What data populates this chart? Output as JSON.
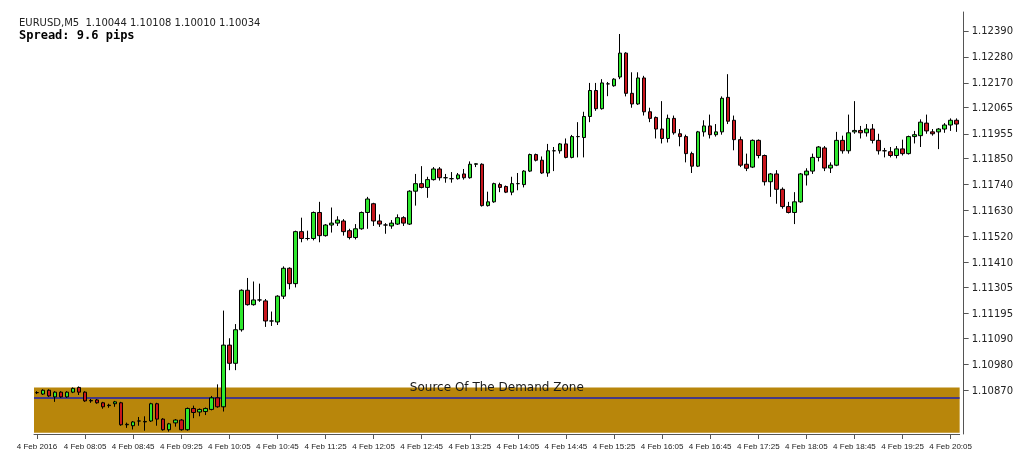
{
  "chart_data": {
    "type": "candlestick",
    "title": "EURUSD,M5  1.10044 1.10108 1.10010 1.10034",
    "subtitle": "Spread: 9.6 pips",
    "categories": [
      "4 Feb 2016",
      null,
      null,
      null,
      null,
      null,
      null,
      null,
      "4 Feb 08:05",
      null,
      null,
      null,
      null,
      null,
      null,
      null,
      "4 Feb 08:45",
      null,
      null,
      null,
      null,
      null,
      null,
      null,
      "4 Feb 09:25",
      null,
      null,
      null,
      null,
      null,
      null,
      null,
      "4 Feb 10:05",
      null,
      null,
      null,
      null,
      null,
      null,
      null,
      "4 Feb 10:45",
      null,
      null,
      null,
      null,
      null,
      null,
      null,
      "4 Feb 11:25",
      null,
      null,
      null,
      null,
      null,
      null,
      null,
      "4 Feb 12:05",
      null,
      null,
      null,
      null,
      null,
      null,
      null,
      "4 Feb 12:45",
      null,
      null,
      null,
      null,
      null,
      null,
      null,
      "4 Feb 13:25",
      null,
      null,
      null,
      null,
      null,
      null,
      null,
      "4 Feb 14:05",
      null,
      null,
      null,
      null,
      null,
      null,
      null,
      "4 Feb 14:45",
      null,
      null,
      null,
      null,
      null,
      null,
      null,
      "4 Feb 15:25",
      null,
      null,
      null,
      null,
      null,
      null,
      null,
      "4 Feb 16:05",
      null,
      null,
      null,
      null,
      null,
      null,
      null,
      "4 Feb 16:45",
      null,
      null,
      null,
      null,
      null,
      null,
      null,
      "4 Feb 17:25",
      null,
      null,
      null,
      null,
      null,
      null,
      null,
      "4 Feb 18:05",
      null,
      null,
      null,
      null,
      null,
      null,
      null,
      "4 Feb 18:45",
      null,
      null,
      null,
      null,
      null,
      null,
      null,
      "4 Feb 19:25",
      null,
      null,
      null,
      null,
      null,
      null,
      null,
      "4 Feb 20:05",
      null
    ],
    "ohlc": [
      [
        1.1086,
        1.10866,
        1.10854,
        1.1086
      ],
      [
        1.10854,
        1.10874,
        1.1085,
        1.1087
      ],
      [
        1.1087,
        1.10874,
        1.10842,
        1.10846
      ],
      [
        1.10842,
        1.10866,
        1.10821,
        1.10862
      ],
      [
        1.10862,
        1.10866,
        1.10838,
        1.10842
      ],
      [
        1.10842,
        1.10866,
        1.10838,
        1.10862
      ],
      [
        1.10862,
        1.10882,
        1.10858,
        1.10878
      ],
      [
        1.10882,
        1.10886,
        1.1085,
        1.10862
      ],
      [
        1.10862,
        1.10866,
        1.10821,
        1.10825
      ],
      [
        1.10825,
        1.10833,
        1.10817,
        1.10827
      ],
      [
        1.10829,
        1.10833,
        1.10813,
        1.10817
      ],
      [
        1.10817,
        1.10821,
        1.10792,
        1.108
      ],
      [
        1.10805,
        1.10813,
        1.10796,
        1.10807
      ],
      [
        1.10813,
        1.10825,
        1.108,
        1.10821
      ],
      [
        1.10817,
        1.10821,
        1.1072,
        1.10724
      ],
      [
        1.10724,
        1.10733,
        1.10711,
        1.10726
      ],
      [
        1.1072,
        1.1074,
        1.10704,
        1.10736
      ],
      [
        1.1074,
        1.10757,
        1.1072,
        1.1074
      ],
      [
        1.10736,
        1.1076,
        1.10699,
        1.10738
      ],
      [
        1.1074,
        1.10817,
        1.10736,
        1.10813
      ],
      [
        1.10813,
        1.10817,
        1.1072,
        1.10748
      ],
      [
        1.10748,
        1.10752,
        1.10699,
        1.10703
      ],
      [
        1.10703,
        1.10732,
        1.10695,
        1.10728
      ],
      [
        1.10732,
        1.10748,
        1.10716,
        1.10744
      ],
      [
        1.10744,
        1.10748,
        1.10699,
        1.10703
      ],
      [
        1.10703,
        1.10797,
        1.10699,
        1.10793
      ],
      [
        1.10793,
        1.10805,
        1.10752,
        1.10776
      ],
      [
        1.10778,
        1.10793,
        1.1076,
        1.10789
      ],
      [
        1.1078,
        1.10797,
        1.10765,
        1.10793
      ],
      [
        1.10789,
        1.10846,
        1.10785,
        1.10838
      ],
      [
        1.10838,
        1.10895,
        1.10796,
        1.108
      ],
      [
        1.108,
        1.11207,
        1.1078,
        1.11061
      ],
      [
        1.11061,
        1.1109,
        1.10955,
        1.10984
      ],
      [
        1.10984,
        1.1115,
        1.10955,
        1.11126
      ],
      [
        1.11126,
        1.11297,
        1.11118,
        1.11293
      ],
      [
        1.11293,
        1.11345,
        1.11228,
        1.11232
      ],
      [
        1.11232,
        1.1133,
        1.11228,
        1.11252
      ],
      [
        1.11252,
        1.11321,
        1.11244,
        1.11252
      ],
      [
        1.11248,
        1.11256,
        1.11138,
        1.11163
      ],
      [
        1.11163,
        1.11203,
        1.11142,
        1.11163
      ],
      [
        1.11159,
        1.11272,
        1.11146,
        1.11268
      ],
      [
        1.11268,
        1.11394,
        1.11256,
        1.11386
      ],
      [
        1.11386,
        1.1139,
        1.11297,
        1.11321
      ],
      [
        1.11321,
        1.11545,
        1.11305,
        1.11541
      ],
      [
        1.11541,
        1.116,
        1.11496,
        1.11512
      ],
      [
        1.11512,
        1.11545,
        1.11504,
        1.11512
      ],
      [
        1.11512,
        1.11626,
        1.11504,
        1.11622
      ],
      [
        1.11622,
        1.11667,
        1.11496,
        1.11524
      ],
      [
        1.11524,
        1.11573,
        1.1152,
        1.11569
      ],
      [
        1.11569,
        1.11643,
        1.11537,
        1.11577
      ],
      [
        1.11577,
        1.11606,
        1.11565,
        1.1159
      ],
      [
        1.11586,
        1.11594,
        1.11524,
        1.11541
      ],
      [
        1.11545,
        1.11553,
        1.11508,
        1.11516
      ],
      [
        1.11516,
        1.11573,
        1.11508,
        1.11553
      ],
      [
        1.11553,
        1.11626,
        1.11549,
        1.11622
      ],
      [
        1.11622,
        1.11688,
        1.11553,
        1.11679
      ],
      [
        1.11659,
        1.11663,
        1.11565,
        1.11586
      ],
      [
        1.11586,
        1.11614,
        1.11561,
        1.11573
      ],
      [
        1.11569,
        1.11577,
        1.11532,
        1.11569
      ],
      [
        1.11565,
        1.1159,
        1.11553,
        1.11577
      ],
      [
        1.11573,
        1.11614,
        1.11569,
        1.116
      ],
      [
        1.116,
        1.11606,
        1.11565,
        1.11577
      ],
      [
        1.11573,
        1.11716,
        1.11569,
        1.11712
      ],
      [
        1.11712,
        1.11785,
        1.11651,
        1.11744
      ],
      [
        1.11744,
        1.11818,
        1.11724,
        1.11728
      ],
      [
        1.11728,
        1.11773,
        1.11684,
        1.11761
      ],
      [
        1.11761,
        1.11814,
        1.11757,
        1.11806
      ],
      [
        1.11806,
        1.11814,
        1.11757,
        1.11769
      ],
      [
        1.11769,
        1.11785,
        1.11748,
        1.11769
      ],
      [
        1.11765,
        1.11793,
        1.11748,
        1.11765
      ],
      [
        1.11765,
        1.11789,
        1.11761,
        1.11781
      ],
      [
        1.11785,
        1.11806,
        1.11761,
        1.11769
      ],
      [
        1.11769,
        1.11838,
        1.11765,
        1.11826
      ],
      [
        1.11826,
        1.1183,
        1.11814,
        1.11828
      ],
      [
        1.11826,
        1.1183,
        1.11647,
        1.11651
      ],
      [
        1.11651,
        1.1171,
        1.11647,
        1.11667
      ],
      [
        1.11667,
        1.11748,
        1.11663,
        1.11744
      ],
      [
        1.1174,
        1.11748,
        1.11708,
        1.11728
      ],
      [
        1.11732,
        1.11736,
        1.11704,
        1.11708
      ],
      [
        1.11708,
        1.11773,
        1.11695,
        1.11744
      ],
      [
        1.11744,
        1.11789,
        1.11716,
        1.11744
      ],
      [
        1.1174,
        1.11801,
        1.11728,
        1.11797
      ],
      [
        1.11797,
        1.11871,
        1.11793,
        1.11867
      ],
      [
        1.11867,
        1.11871,
        1.11838,
        1.11843
      ],
      [
        1.11843,
        1.11859,
        1.11785,
        1.11789
      ],
      [
        1.11789,
        1.11912,
        1.11773,
        1.11883
      ],
      [
        1.11883,
        1.11899,
        1.11797,
        1.11883
      ],
      [
        1.11883,
        1.11916,
        1.11871,
        1.11912
      ],
      [
        1.11912,
        1.11935,
        1.11851,
        1.11855
      ],
      [
        1.11855,
        1.1195,
        1.11851,
        1.11943
      ],
      [
        1.11943,
        1.12004,
        1.11855,
        1.11943
      ],
      [
        1.11939,
        1.12048,
        1.11855,
        1.12028
      ],
      [
        1.12028,
        1.1217,
        1.12004,
        1.12138
      ],
      [
        1.12138,
        1.1217,
        1.12052,
        1.12061
      ],
      [
        1.12061,
        1.12186,
        1.12057,
        1.1217
      ],
      [
        1.12166,
        1.12174,
        1.12114,
        1.12166
      ],
      [
        1.12158,
        1.1219,
        1.12154,
        1.12186
      ],
      [
        1.12195,
        1.12377,
        1.12186,
        1.12296
      ],
      [
        1.12296,
        1.123,
        1.12113,
        1.12126
      ],
      [
        1.12126,
        1.12215,
        1.12065,
        1.12081
      ],
      [
        1.12081,
        1.12215,
        1.12077,
        1.12191
      ],
      [
        1.12191,
        1.122,
        1.12032,
        1.12048
      ],
      [
        1.12048,
        1.12065,
        1.12004,
        1.1202
      ],
      [
        1.12024,
        1.12028,
        1.11935,
        1.11975
      ],
      [
        1.11975,
        1.12093,
        1.11914,
        1.11935
      ],
      [
        1.11935,
        1.12036,
        1.11918,
        1.1202
      ],
      [
        1.1202,
        1.12032,
        1.11951,
        1.11959
      ],
      [
        1.11955,
        1.11975,
        1.11902,
        1.11943
      ],
      [
        1.11943,
        1.11951,
        1.11834,
        1.11871
      ],
      [
        1.11871,
        1.11879,
        1.11789,
        1.11818
      ],
      [
        1.11818,
        1.11967,
        1.11814,
        1.11963
      ],
      [
        1.11963,
        1.12012,
        1.11943,
        1.11988
      ],
      [
        1.11988,
        1.12036,
        1.11935,
        1.11951
      ],
      [
        1.11951,
        1.11996,
        1.11943,
        1.11963
      ],
      [
        1.11963,
        1.12113,
        1.11951,
        1.12105
      ],
      [
        1.12109,
        1.12207,
        1.11996,
        1.12008
      ],
      [
        1.12012,
        1.12032,
        1.11885,
        1.1193
      ],
      [
        1.1193,
        1.11943,
        1.11814,
        1.11822
      ],
      [
        1.11826,
        1.11871,
        1.11797,
        1.11809
      ],
      [
        1.11814,
        1.11931,
        1.1181,
        1.11927
      ],
      [
        1.11927,
        1.11931,
        1.11851,
        1.11863
      ],
      [
        1.11863,
        1.11867,
        1.11736,
        1.11752
      ],
      [
        1.11752,
        1.11789,
        1.11688,
        1.11785
      ],
      [
        1.11785,
        1.11801,
        1.11659,
        1.1172
      ],
      [
        1.1172,
        1.11728,
        1.11638,
        1.11647
      ],
      [
        1.11647,
        1.11667,
        1.11618,
        1.11622
      ],
      [
        1.11622,
        1.11708,
        1.11573,
        1.11667
      ],
      [
        1.11667,
        1.11789,
        1.11663,
        1.11785
      ],
      [
        1.11781,
        1.11809,
        1.11736,
        1.11797
      ],
      [
        1.11797,
        1.11871,
        1.11785,
        1.11855
      ],
      [
        1.11855,
        1.11903,
        1.11838,
        1.11899
      ],
      [
        1.11895,
        1.11903,
        1.11797,
        1.1181
      ],
      [
        1.1181,
        1.11834,
        1.11789,
        1.11822
      ],
      [
        1.11822,
        1.11963,
        1.11818,
        1.11927
      ],
      [
        1.11927,
        1.11947,
        1.11871,
        1.11883
      ],
      [
        1.11883,
        1.12036,
        1.11871,
        1.11959
      ],
      [
        1.11963,
        1.12093,
        1.11955,
        1.11969
      ],
      [
        1.11969,
        1.11988,
        1.11935,
        1.11959
      ],
      [
        1.11959,
        1.11996,
        1.11943,
        1.11975
      ],
      [
        1.11975,
        1.11996,
        1.11914,
        1.11927
      ],
      [
        1.11927,
        1.11955,
        1.11867,
        1.11883
      ],
      [
        1.11883,
        1.11895,
        1.11855,
        1.11883
      ],
      [
        1.11879,
        1.11899,
        1.11855,
        1.11863
      ],
      [
        1.11863,
        1.11903,
        1.11851,
        1.11891
      ],
      [
        1.11891,
        1.1193,
        1.11863,
        1.11871
      ],
      [
        1.11871,
        1.11947,
        1.11867,
        1.11943
      ],
      [
        1.11943,
        1.11967,
        1.11914,
        1.11951
      ],
      [
        1.11947,
        1.12016,
        1.11899,
        1.12004
      ],
      [
        1.12,
        1.12036,
        1.11955,
        1.11967
      ],
      [
        1.11963,
        1.11975,
        1.11947,
        1.11955
      ],
      [
        1.11963,
        1.11979,
        1.1189,
        1.11975
      ],
      [
        1.11975,
        1.12,
        1.11959,
        1.11992
      ],
      [
        1.11992,
        1.1202,
        1.11967,
        1.12012
      ],
      [
        1.12012,
        1.1202,
        1.11963,
        1.11996
      ]
    ],
    "ylim": [
      1.10685,
      1.1247
    ],
    "yticks": [
      {
        "value": 1.1239,
        "label": "1.12390"
      },
      {
        "value": 1.1228,
        "label": "1.12280"
      },
      {
        "value": 1.1217,
        "label": "1.12170"
      },
      {
        "value": 1.12065,
        "label": "1.12065"
      },
      {
        "value": 1.11955,
        "label": "1.11955"
      },
      {
        "value": 1.1185,
        "label": "1.11850"
      },
      {
        "value": 1.1174,
        "label": "1.11740"
      },
      {
        "value": 1.1163,
        "label": "1.11630"
      },
      {
        "value": 1.1152,
        "label": "1.11520"
      },
      {
        "value": 1.1141,
        "label": "1.11410"
      },
      {
        "value": 1.11305,
        "label": "1.11305"
      },
      {
        "value": 1.11195,
        "label": "1.11195"
      },
      {
        "value": 1.1109,
        "label": "1.11090"
      },
      {
        "value": 1.1098,
        "label": "1.10980"
      },
      {
        "value": 1.1087,
        "label": "1.10870"
      }
    ],
    "bands": [
      {
        "axis": "y",
        "from": 1.1069,
        "to": 1.10882,
        "color": "#b8860b"
      }
    ],
    "ref_lines": [
      {
        "axis": "y",
        "value": 1.10838,
        "label": "Source Of The Demand Zone",
        "color": "#1f1fb0"
      }
    ],
    "grid": false
  }
}
